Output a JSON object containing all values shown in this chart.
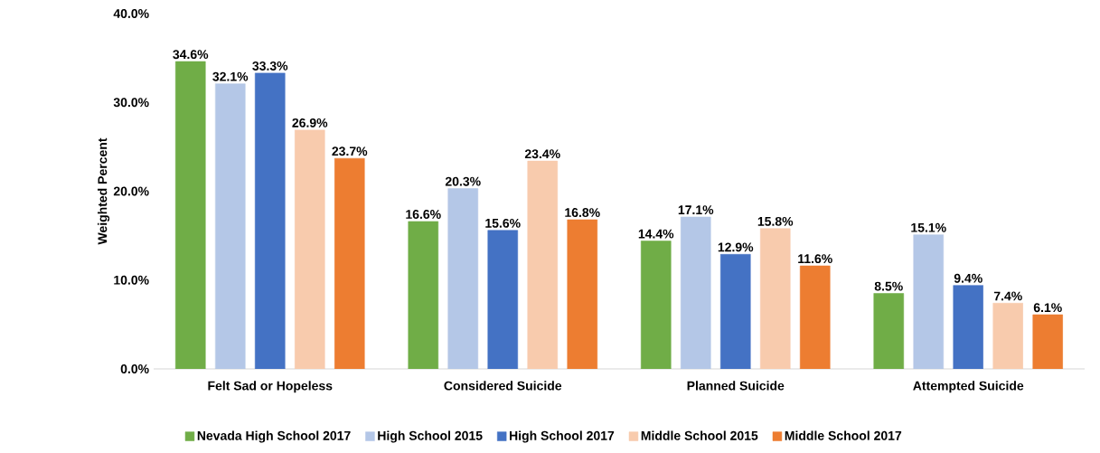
{
  "chart_data": {
    "type": "bar",
    "ylabel": "Weighted Percent",
    "categories": [
      "Felt Sad or Hopeless",
      "Considered Suicide",
      "Planned Suicide",
      "Attempted Suicide"
    ],
    "series": [
      {
        "name": "Nevada High School 2017",
        "color": "#70ad47",
        "values": [
          34.6,
          16.6,
          14.4,
          8.5
        ],
        "value_labels": [
          "34.6%",
          "16.6%",
          "14.4%",
          "8.5%"
        ]
      },
      {
        "name": "High School 2015",
        "color": "#b4c7e7",
        "values": [
          32.1,
          20.3,
          17.1,
          15.1
        ],
        "value_labels": [
          "32.1%",
          "20.3%",
          "17.1%",
          "15.1%"
        ]
      },
      {
        "name": "High School 2017",
        "color": "#4472c4",
        "values": [
          33.3,
          15.6,
          12.9,
          9.4
        ],
        "value_labels": [
          "33.3%",
          "15.6%",
          "12.9%",
          "9.4%"
        ]
      },
      {
        "name": "Middle School 2015",
        "color": "#f8cbad",
        "values": [
          26.9,
          23.4,
          15.8,
          7.4
        ],
        "value_labels": [
          "26.9%",
          "23.4%",
          "15.8%",
          "7.4%"
        ]
      },
      {
        "name": "Middle School 2017",
        "color": "#ed7d31",
        "values": [
          23.7,
          16.8,
          11.6,
          6.1
        ],
        "value_labels": [
          "23.7%",
          "16.8%",
          "11.6%",
          "6.1%"
        ]
      }
    ],
    "ylim": [
      0,
      40
    ],
    "yticks": [
      {
        "value": 0,
        "label": "0.0%"
      },
      {
        "value": 10,
        "label": "10.0%"
      },
      {
        "value": 20,
        "label": "20.0%"
      },
      {
        "value": 30,
        "label": "30.0%"
      },
      {
        "value": 40,
        "label": "40.0%"
      }
    ],
    "legend": "bottom"
  }
}
